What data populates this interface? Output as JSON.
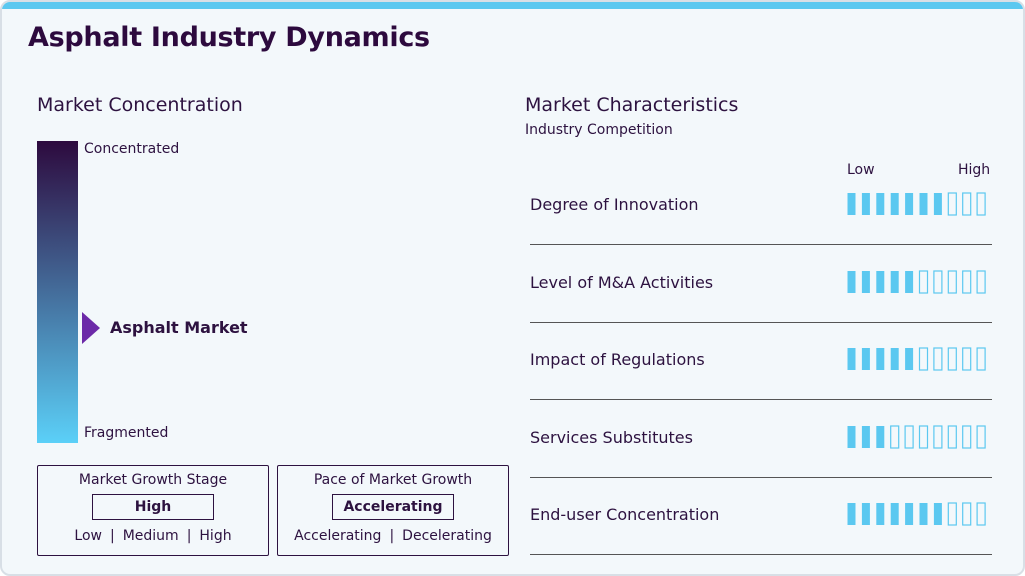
{
  "header": {
    "title": "Asphalt Industry Dynamics"
  },
  "concentration": {
    "title": "Market Concentration",
    "top_label": "Concentrated",
    "bottom_label": "Fragmented",
    "marker_label": "Asphalt Market",
    "position": 38
  },
  "growth_stage": {
    "title": "Market Growth Stage",
    "value": "High",
    "options": [
      "Low",
      "Medium",
      "High"
    ]
  },
  "growth_pace": {
    "title": "Pace of Market Growth",
    "value": "Accelerating",
    "options": [
      "Accelerating",
      "Decelerating"
    ]
  },
  "characteristics": {
    "title": "Market Characteristics",
    "subtitle": "Industry Competition",
    "low_label": "Low",
    "high_label": "High",
    "scale_max": 10,
    "items": [
      {
        "name": "Degree of Innovation",
        "level": 7
      },
      {
        "name": "Level of M&A Activities",
        "level": 5
      },
      {
        "name": "Impact of Regulations",
        "level": 5
      },
      {
        "name": "Services Substitutes",
        "level": 3
      },
      {
        "name": "End-user Concentration",
        "level": 7
      }
    ]
  }
}
